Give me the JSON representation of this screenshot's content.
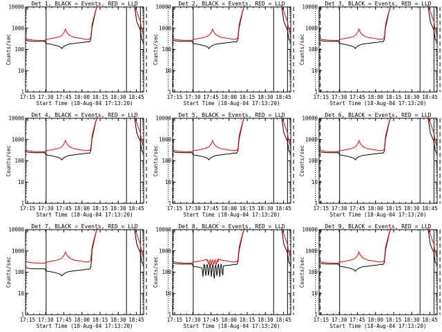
{
  "chart_data": {
    "type": "line",
    "layout": "3x3 grid",
    "xlabel": "Start Time (18-Aug-04 17:13:20)",
    "ylabel": "Counts/sec",
    "ylim": [
      1,
      10000
    ],
    "yscale": "log",
    "xlim": [
      "17:13:20",
      "18:51:00"
    ],
    "x_tick_labels": [
      "17:15",
      "17:30",
      "17:45",
      "18:00",
      "18:15",
      "18:30",
      "18:45"
    ],
    "y_tick_labels": [
      "1",
      "10",
      "100",
      "1000",
      "10000"
    ],
    "colors": {
      "events": "#000000",
      "lld": "#ff0000",
      "axes": "#000000"
    },
    "vertical_markers_min": {
      "solid": [
        17.0,
        83.5,
        95.0
      ],
      "dashed": [
        100.0,
        122.0
      ],
      "dotted": [
        118.0
      ]
    },
    "panels": [
      {
        "title": "Det 1, BLACK = Events, RED = LLD",
        "variant": "normal"
      },
      {
        "title": "Det 2, BLACK = Events, RED = LLD",
        "variant": "normal"
      },
      {
        "title": "Det 3, BLACK = Events, RED = LLD",
        "variant": "normal"
      },
      {
        "title": "Det 4, BLACK = Events, RED = LLD",
        "variant": "normal"
      },
      {
        "title": "Det 5, BLACK = Events, RED = LLD",
        "variant": "normal"
      },
      {
        "title": "Det 6, BLACK = Events, RED = LLD",
        "variant": "normal"
      },
      {
        "title": "Det 7, BLACK = Events, RED = LLD",
        "variant": "d7"
      },
      {
        "title": "Det 8, BLACK = Events, RED = LLD",
        "variant": "d8"
      },
      {
        "title": "Det 9, BLACK = Events, RED = LLD",
        "variant": "normal"
      }
    ]
  }
}
